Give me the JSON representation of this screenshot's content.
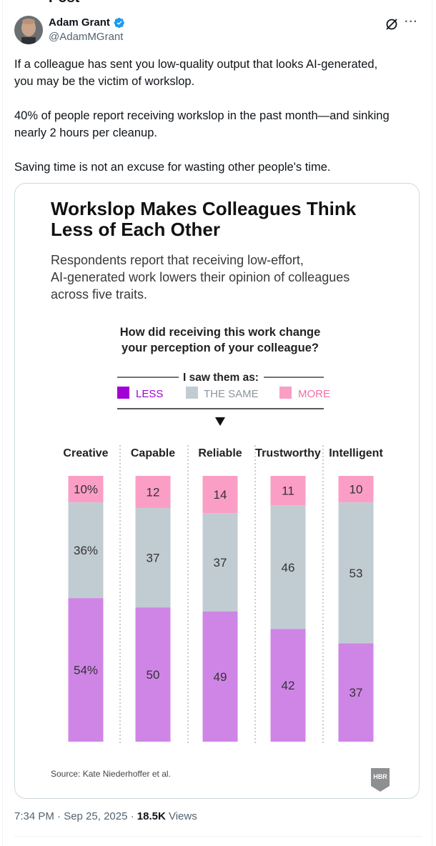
{
  "header": {
    "cut_title": "Post"
  },
  "author": {
    "name": "Adam Grant",
    "handle": "@AdamMGrant"
  },
  "tweet": {
    "p1_line1": "If a colleague has sent you low-quality output that looks AI-generated,",
    "p1_line2": "you may be the victim of workslop.",
    "p2_line1": "40% of people report receiving workslop in the past month—and sinking",
    "p2_line2": "nearly 2 hours per cleanup.",
    "p3": "Saving time is not an excuse for wasting other people's time."
  },
  "infographic": {
    "title_line1": "Workslop Makes Colleagues Think",
    "title_line2": "Less of Each Other",
    "subtitle_line1": "Respondents report that receiving low-effort,",
    "subtitle_line2": "AI-generated work lowers their opinion of colleagues",
    "subtitle_line3": "across five traits.",
    "question_line1": "How did receiving this work change",
    "question_line2": "your perception of your colleague?",
    "legend_heading": "I saw them as:",
    "legend": {
      "less": "LESS",
      "same": "THE SAME",
      "more": "MORE"
    },
    "source": "Source: Kate Niederhoffer et al.",
    "logo": "HBR"
  },
  "chart_data": {
    "type": "bar",
    "stacked": true,
    "unit": "%",
    "categories": [
      "Creative",
      "Capable",
      "Reliable",
      "Trustworthy",
      "Intelligent"
    ],
    "series": [
      {
        "name": "LESS",
        "values": [
          54,
          50,
          49,
          42,
          37
        ],
        "labels": [
          "54%",
          "50",
          "49",
          "42",
          "37"
        ]
      },
      {
        "name": "THE SAME",
        "values": [
          36,
          37,
          37,
          46,
          53
        ],
        "labels": [
          "36%",
          "37",
          "37",
          "46",
          "53"
        ]
      },
      {
        "name": "MORE",
        "values": [
          10,
          12,
          14,
          11,
          10
        ],
        "labels": [
          "10%",
          "12",
          "14",
          "11",
          "10"
        ]
      }
    ],
    "colors": {
      "LESS": "#cf85e6",
      "THE SAME": "#c1ccd2",
      "MORE": "#fb9ec5"
    },
    "ylim": [
      0,
      100
    ]
  },
  "meta": {
    "time": "7:34 PM · Sep 25, 2025 · ",
    "views_count": "18.5K",
    "views_label": " Views"
  },
  "colors": {
    "accent": "#1d9bf0",
    "text": "#0f1419",
    "muted": "#536471",
    "less_swatch": "#a100d6"
  }
}
